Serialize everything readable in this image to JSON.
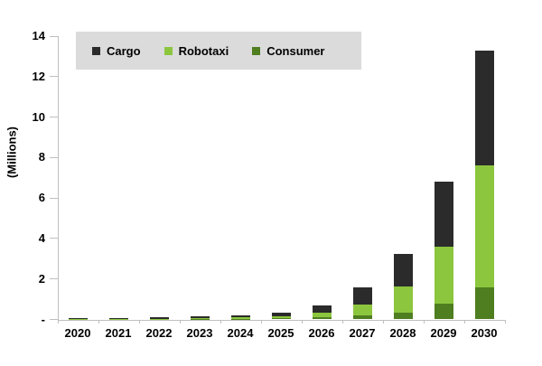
{
  "chart_data": {
    "type": "bar",
    "stacked": true,
    "title": "",
    "ylabel": "(Millions)",
    "xlabel": "",
    "categories": [
      "2020",
      "2021",
      "2022",
      "2023",
      "2024",
      "2025",
      "2026",
      "2027",
      "2028",
      "2029",
      "2030"
    ],
    "series": [
      {
        "name": "Cargo",
        "color": "#2b2b2b",
        "values": [
          0.04,
          0.05,
          0.06,
          0.09,
          0.1,
          0.2,
          0.35,
          0.85,
          1.6,
          3.2,
          5.7
        ]
      },
      {
        "name": "Robotaxi",
        "color": "#8cc63e",
        "values": [
          0.02,
          0.02,
          0.03,
          0.04,
          0.08,
          0.1,
          0.25,
          0.55,
          1.3,
          2.8,
          6.0
        ]
      },
      {
        "name": "Consumer",
        "color": "#4e7e20",
        "values": [
          0.01,
          0.01,
          0.01,
          0.02,
          0.03,
          0.05,
          0.1,
          0.2,
          0.35,
          0.8,
          1.6
        ]
      }
    ],
    "stack_order_bottom_to_top": [
      "Consumer",
      "Robotaxi",
      "Cargo"
    ],
    "ylim": [
      0,
      14
    ],
    "ytick_step": 2,
    "ytick_labels": [
      "-",
      "2",
      "4",
      "6",
      "8",
      "10",
      "12",
      "14"
    ],
    "grid": false,
    "legend_position": "top-left"
  },
  "colors": {
    "axis": "#bfbfbf",
    "legend_background": "#dbdbdb",
    "text": "#000000",
    "background": "#ffffff"
  }
}
